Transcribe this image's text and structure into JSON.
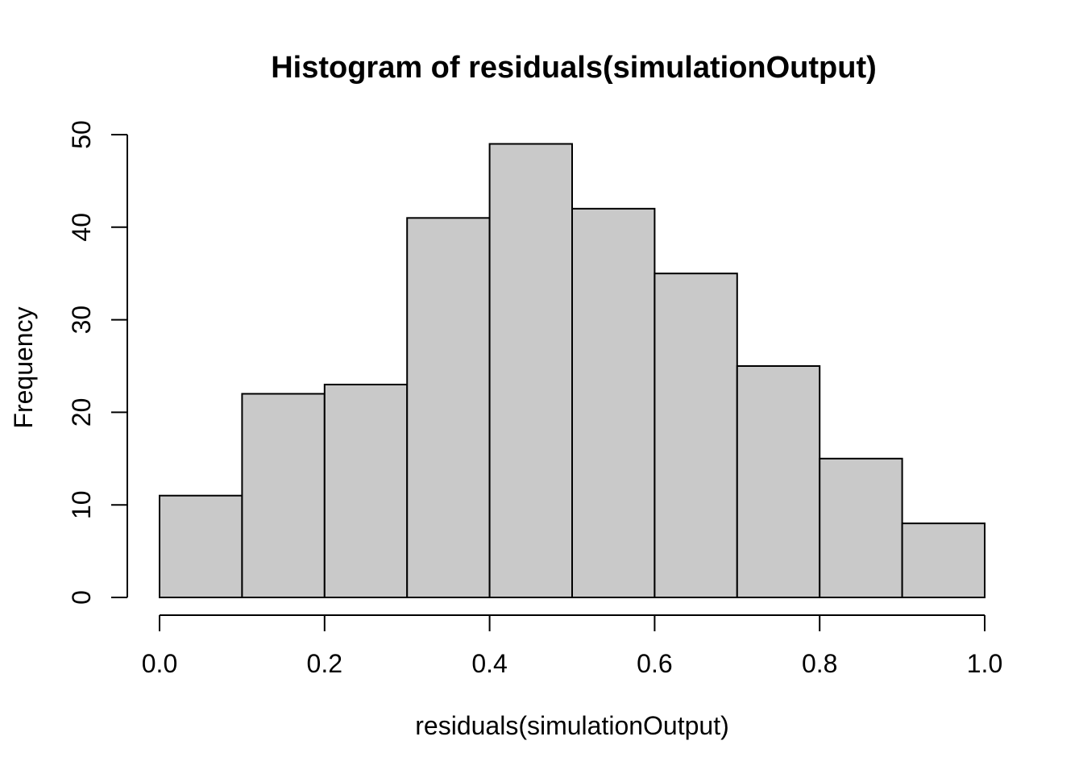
{
  "chart_data": {
    "type": "bar",
    "subtype": "histogram",
    "title": "Histogram of residuals(simulationOutput)",
    "xlabel": "residuals(simulationOutput)",
    "ylabel": "Frequency",
    "bin_edges": [
      0.0,
      0.1,
      0.2,
      0.3,
      0.4,
      0.5,
      0.6,
      0.7,
      0.8,
      0.9,
      1.0
    ],
    "values": [
      11,
      22,
      23,
      41,
      49,
      42,
      35,
      25,
      15,
      8
    ],
    "x_ticks": [
      0.0,
      0.2,
      0.4,
      0.6,
      0.8,
      1.0
    ],
    "x_tick_labels": [
      "0.0",
      "0.2",
      "0.4",
      "0.6",
      "0.8",
      "1.0"
    ],
    "y_ticks": [
      0,
      10,
      20,
      30,
      40,
      50
    ],
    "y_tick_labels": [
      "0",
      "10",
      "20",
      "30",
      "40",
      "50"
    ],
    "xlim": [
      0.0,
      1.0
    ],
    "ylim": [
      0,
      50
    ],
    "grid": false,
    "legend": null,
    "colors": {
      "bar_fill": "#C9C9C9",
      "bar_stroke": "#000000",
      "axis": "#000000",
      "text": "#000000",
      "background": "#FFFFFF"
    }
  }
}
